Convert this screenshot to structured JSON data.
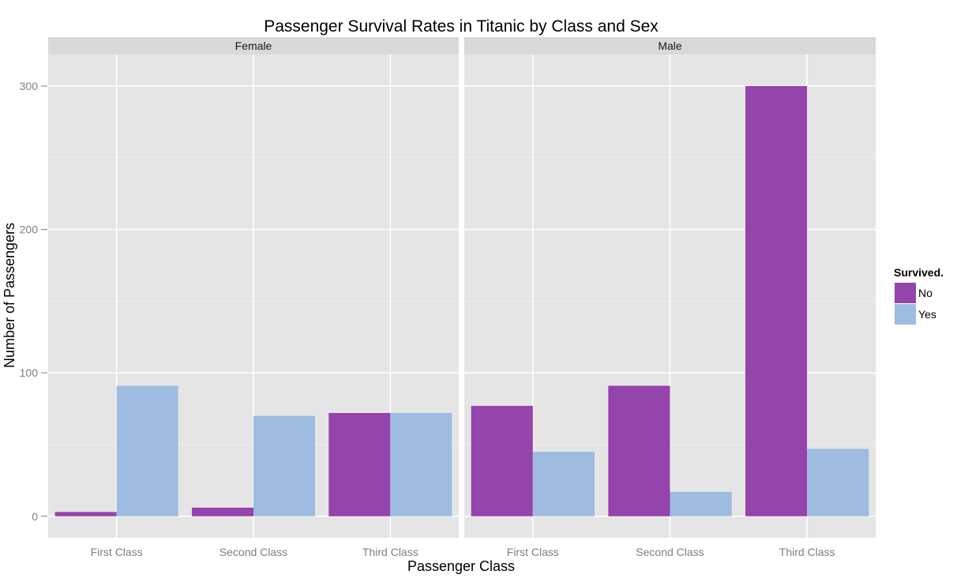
{
  "chart_data": {
    "type": "bar",
    "title": "Passenger Survival Rates in Titanic by Class and Sex",
    "xlabel": "Passenger Class",
    "ylabel": "Number of Passengers",
    "ylim": [
      -15,
      322
    ],
    "yticks": [
      0,
      100,
      200,
      300
    ],
    "grid": true,
    "facets": [
      "Female",
      "Male"
    ],
    "categories": [
      "First Class",
      "Second Class",
      "Third Class"
    ],
    "legend": {
      "title": "Survived.",
      "position": "right"
    },
    "series": [
      {
        "name": "No",
        "color": "#9444aa",
        "values": {
          "Female": [
            3,
            6,
            72
          ],
          "Male": [
            77,
            91,
            300
          ]
        }
      },
      {
        "name": "Yes",
        "color": "#9dbcdf",
        "values": {
          "Female": [
            91,
            70,
            72
          ],
          "Male": [
            45,
            17,
            47
          ]
        }
      }
    ]
  }
}
